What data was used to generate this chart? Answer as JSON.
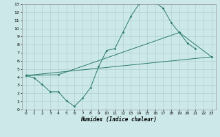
{
  "xlabel": "Humidex (Indice chaleur)",
  "xlim": [
    -0.5,
    23.5
  ],
  "ylim": [
    0,
    13
  ],
  "xticks": [
    0,
    1,
    2,
    3,
    4,
    5,
    6,
    7,
    8,
    9,
    10,
    11,
    12,
    13,
    14,
    15,
    16,
    17,
    18,
    19,
    20,
    21,
    22,
    23
  ],
  "yticks": [
    0,
    1,
    2,
    3,
    4,
    5,
    6,
    7,
    8,
    9,
    10,
    11,
    12,
    13
  ],
  "line_color": "#2a7a6a",
  "bg_color": "#cce8e8",
  "grid_color": "#b0d0d0",
  "line1_x": [
    0,
    1,
    2,
    3,
    4,
    5,
    6,
    7,
    8,
    9,
    10,
    11,
    12,
    13,
    14,
    15,
    16,
    17,
    18,
    19,
    20,
    21
  ],
  "line1_y": [
    4.2,
    3.9,
    3.1,
    2.2,
    2.2,
    1.1,
    0.4,
    1.4,
    2.7,
    5.3,
    7.3,
    7.5,
    9.5,
    11.5,
    13.0,
    13.2,
    13.2,
    12.5,
    10.7,
    9.5,
    8.2,
    7.5
  ],
  "line2_x": [
    0,
    4,
    19,
    23
  ],
  "line2_y": [
    4.2,
    4.3,
    9.5,
    6.5
  ],
  "line3_x": [
    0,
    23
  ],
  "line3_y": [
    4.2,
    6.5
  ]
}
